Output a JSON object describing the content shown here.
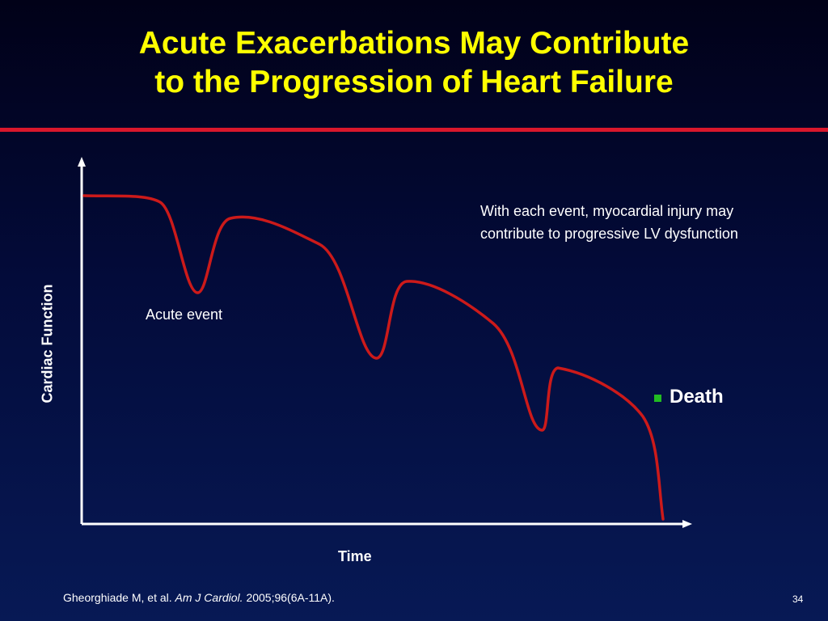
{
  "slide": {
    "title_line1": "Acute Exacerbations May Contribute",
    "title_line2": "to the Progression of Heart Failure",
    "page_number": "34"
  },
  "diagram": {
    "y_axis_label": "Cardiac Function",
    "x_axis_label": "Time",
    "annotation_event": "Acute event",
    "annotation_injury_line1": "With each event, myocardial injury may",
    "annotation_injury_line2": "contribute to progressive LV dysfunction",
    "death_label": "Death"
  },
  "citation": {
    "authors": "Gheorghiade M, et al.",
    "journal": "Am J Cardiol.",
    "details": "2005;96(6A-11A)."
  },
  "colors": {
    "title": "#ffff00",
    "accent_rule": "#d9172c",
    "curve": "#cc1a1a",
    "death_bullet": "#22bb22",
    "axes": "#ffffff",
    "text": "#ffffff"
  }
}
